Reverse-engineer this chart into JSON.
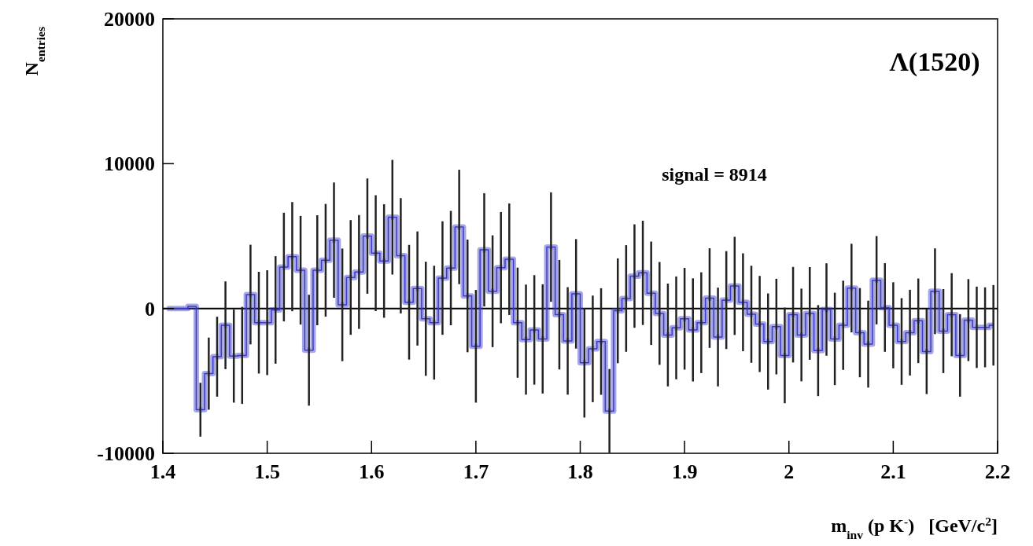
{
  "chart_data": {
    "type": "step",
    "ylabel": "N$_{entries}$",
    "xlabel": "m$_{inv}$ (p K$^{-}$)   [GeV/c$^{2}$]",
    "annotations": [
      "Λ(1520)",
      "signal = 8914"
    ],
    "color": "#3a3ac8",
    "x": [
      1.404,
      1.412,
      1.42,
      1.428,
      1.436,
      1.444,
      1.452,
      1.46,
      1.468,
      1.476,
      1.484,
      1.492,
      1.5,
      1.508,
      1.516,
      1.524,
      1.532,
      1.54,
      1.548,
      1.556,
      1.564,
      1.572,
      1.58,
      1.588,
      1.596,
      1.604,
      1.612,
      1.62,
      1.628,
      1.636,
      1.644,
      1.652,
      1.66,
      1.668,
      1.676,
      1.684,
      1.692,
      1.7,
      1.708,
      1.716,
      1.724,
      1.732,
      1.74,
      1.748,
      1.756,
      1.764,
      1.772,
      1.78,
      1.788,
      1.796,
      1.804,
      1.812,
      1.82,
      1.828,
      1.836,
      1.844,
      1.852,
      1.86,
      1.868,
      1.876,
      1.884,
      1.892,
      1.9,
      1.908,
      1.916,
      1.924,
      1.932,
      1.94,
      1.948,
      1.956,
      1.964,
      1.972,
      1.98,
      1.988,
      1.996,
      2.004,
      2.012,
      2.02,
      2.028,
      2.036,
      2.044,
      2.052,
      2.06,
      2.068,
      2.076,
      2.084,
      2.092,
      2.1,
      2.108,
      2.116,
      2.124,
      2.132,
      2.14,
      2.148,
      2.156,
      2.164,
      2.172,
      2.18,
      2.188,
      2.196
    ],
    "values": [
      0,
      0,
      0,
      150,
      -6990,
      -4500,
      -3330,
      -1160,
      -3290,
      -3240,
      960,
      -980,
      -980,
      -100,
      2860,
      3580,
      2640,
      -2880,
      2640,
      3330,
      4720,
      250,
      2140,
      2520,
      5000,
      3820,
      3280,
      6300,
      3640,
      430,
      1380,
      -710,
      -980,
      2100,
      2790,
      5630,
      870,
      -2610,
      4050,
      1190,
      2820,
      3400,
      -980,
      -2150,
      -1480,
      -2100,
      4240,
      -430,
      -2240,
      1010,
      -3750,
      -2790,
      -2280,
      -7080,
      -160,
      690,
      2240,
      2460,
      1050,
      -340,
      -1830,
      -1340,
      -710,
      -1480,
      -980,
      720,
      -1970,
      580,
      1560,
      430,
      -400,
      -1070,
      -2280,
      -1250,
      -3240,
      -430,
      -1830,
      -340,
      -2910,
      -70,
      -2100,
      -1160,
      1410,
      -1670,
      -2460,
      1950,
      70,
      -1160,
      -2280,
      -1670,
      -850,
      -2970,
      1190,
      -1560,
      -430,
      -3240,
      -800,
      -1300,
      -1300,
      -1160
    ],
    "errors": [
      null,
      null,
      null,
      null,
      1860,
      2490,
      2760,
      3030,
      3210,
      3350,
      3440,
      3510,
      3620,
      3710,
      3750,
      3770,
      3750,
      3830,
      3800,
      3890,
      3980,
      3890,
      3960,
      3930,
      3980,
      4000,
      3920,
      3960,
      3980,
      3960,
      3940,
      3940,
      3930,
      3920,
      3950,
      3950,
      3890,
      3890,
      3910,
      3860,
      3840,
      3850,
      3800,
      3800,
      3780,
      3770,
      3780,
      3780,
      3710,
      3780,
      3780,
      3680,
      3680,
      2900,
      3620,
      3680,
      3570,
      3600,
      3570,
      3550,
      3550,
      3550,
      3510,
      3560,
      3480,
      3440,
      3410,
      3380,
      3390,
      3380,
      3350,
      3320,
      3320,
      3300,
      3300,
      3300,
      3200,
      3200,
      3140,
      3190,
      3190,
      3080,
      3060,
      3080,
      3000,
      3050,
      3060,
      2970,
      2990,
      2960,
      2920,
      2940,
      2960,
      2900,
      2870,
      2850,
      2830,
      2810,
      2760,
      2780
    ],
    "xlim": [
      1.4,
      2.2
    ],
    "ylim": [
      -10000,
      20000
    ],
    "xticks": [
      1.4,
      1.5,
      1.6,
      1.7,
      1.8,
      1.9,
      2,
      2.1,
      2.2
    ],
    "yticks": [
      -10000,
      0,
      10000,
      20000
    ],
    "ref_lines": [
      {
        "axis": "y",
        "value": 0,
        "color": "#000000"
      }
    ],
    "grid": false
  }
}
